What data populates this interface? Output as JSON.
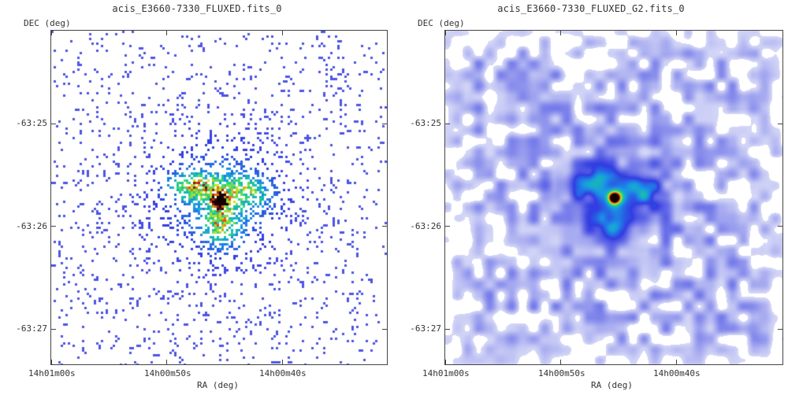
{
  "panels": [
    {
      "title": "acis_E3660-7330_FLUXED.fits_0",
      "ylabel": "DEC (deg)",
      "xlabel": "RA (deg)",
      "yticks": [
        "-63:25",
        "-63:26",
        "-63:27"
      ],
      "xticks": [
        "14h01m00s",
        "14h00m50s",
        "14h00m40s"
      ],
      "style": "raw-counts"
    },
    {
      "title": "acis_E3660-7330_FLUXED_G2.fits_0",
      "ylabel": "DEC (deg)",
      "xlabel": "RA (deg)",
      "yticks": [
        "-63:25",
        "-63:26",
        "-63:27"
      ],
      "xticks": [
        "14h01m00s",
        "14h00m50s",
        "14h00m40s"
      ],
      "style": "smoothed"
    }
  ],
  "colors": {
    "low": "#4a4ae8",
    "mid": "#1fb4e6",
    "high": "#19d66b",
    "peak": "#e0161a"
  }
}
